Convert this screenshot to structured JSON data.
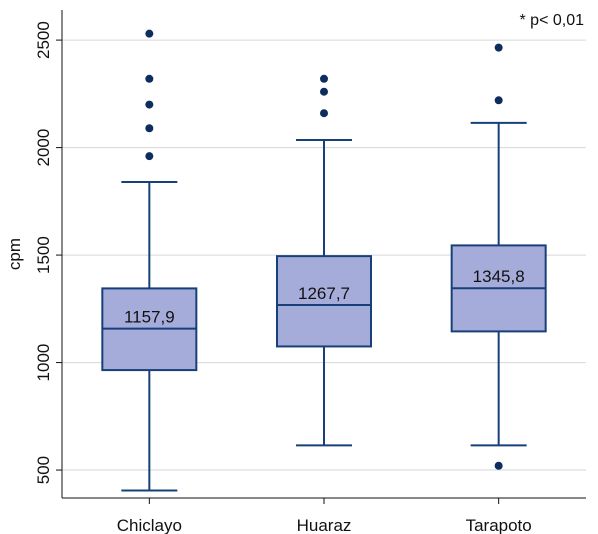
{
  "chart_data": {
    "type": "box",
    "title": "",
    "xlabel": "",
    "ylabel": "cpm",
    "ylim": [
      370,
      2640
    ],
    "yticks": [
      500,
      1000,
      1500,
      2000,
      2500
    ],
    "grid": "horizontal",
    "annotation": "* p< 0,01",
    "colors": {
      "box_fill": "#a5acd9",
      "stroke": "#17407a",
      "outlier": "#0d2d5e",
      "grid": "#d6d6d6"
    },
    "categories": [
      "Chiclayo",
      "Huaraz",
      "Tarapoto"
    ],
    "boxes": [
      {
        "category": "Chiclayo",
        "whisker_low": 405,
        "q1": 965,
        "median": 1157.9,
        "q3": 1345,
        "whisker_high": 1840,
        "median_label": "1157,9",
        "outliers": [
          1960,
          2090,
          2200,
          2320,
          2530
        ]
      },
      {
        "category": "Huaraz",
        "whisker_low": 615,
        "q1": 1075,
        "median": 1267.7,
        "q3": 1495,
        "whisker_high": 2035,
        "median_label": "1267,7",
        "outliers": [
          2160,
          2260,
          2320
        ]
      },
      {
        "category": "Tarapoto",
        "whisker_low": 615,
        "q1": 1145,
        "median": 1345.8,
        "q3": 1545,
        "whisker_high": 2115,
        "median_label": "1345,8",
        "outliers": [
          520,
          2220,
          2465
        ]
      }
    ]
  }
}
